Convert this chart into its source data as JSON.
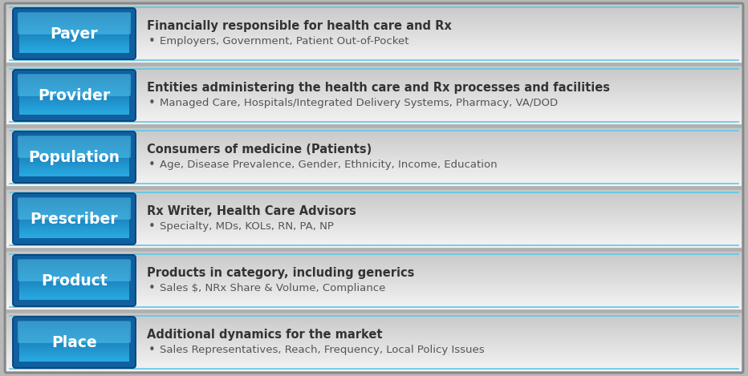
{
  "rows": [
    {
      "label": "Payer",
      "title": "Financially responsible for health care and Rx",
      "bullet": "Employers, Government, Patient Out-of-Pocket"
    },
    {
      "label": "Provider",
      "title": "Entities administering the health care and Rx processes and facilities",
      "bullet": "Managed Care, Hospitals/Integrated Delivery Systems, Pharmacy, VA/DOD"
    },
    {
      "label": "Population",
      "title": "Consumers of medicine (Patients)",
      "bullet": "Age, Disease Prevalence, Gender, Ethnicity, Income, Education"
    },
    {
      "label": "Prescriber",
      "title": "Rx Writer, Health Care Advisors",
      "bullet": "Specialty, MDs, KOLs, RN, PA, NP"
    },
    {
      "label": "Product",
      "title": "Products in category, including generics",
      "bullet": "Sales $, NRx Share & Volume, Compliance"
    },
    {
      "label": "Place",
      "title": "Additional dynamics for the market",
      "bullet": "Sales Representatives, Reach, Frequency, Local Policy Issues"
    }
  ],
  "btn_blue_light": "#29ABE2",
  "btn_blue_mid": "#1E8DC0",
  "btn_blue_dark": "#1060A0",
  "btn_text_color": "#FFFFFF",
  "row_bg_top": "#F4F4F4",
  "row_bg_bottom": "#D0D0D0",
  "separator_cyan": "#5BC8E8",
  "separator_gray": "#B0B0B0",
  "outer_bg": "#B8B8B8",
  "title_color": "#333333",
  "bullet_color": "#555555",
  "title_fontsize": 10.5,
  "bullet_fontsize": 9.5,
  "btn_fontsize": 13.5
}
